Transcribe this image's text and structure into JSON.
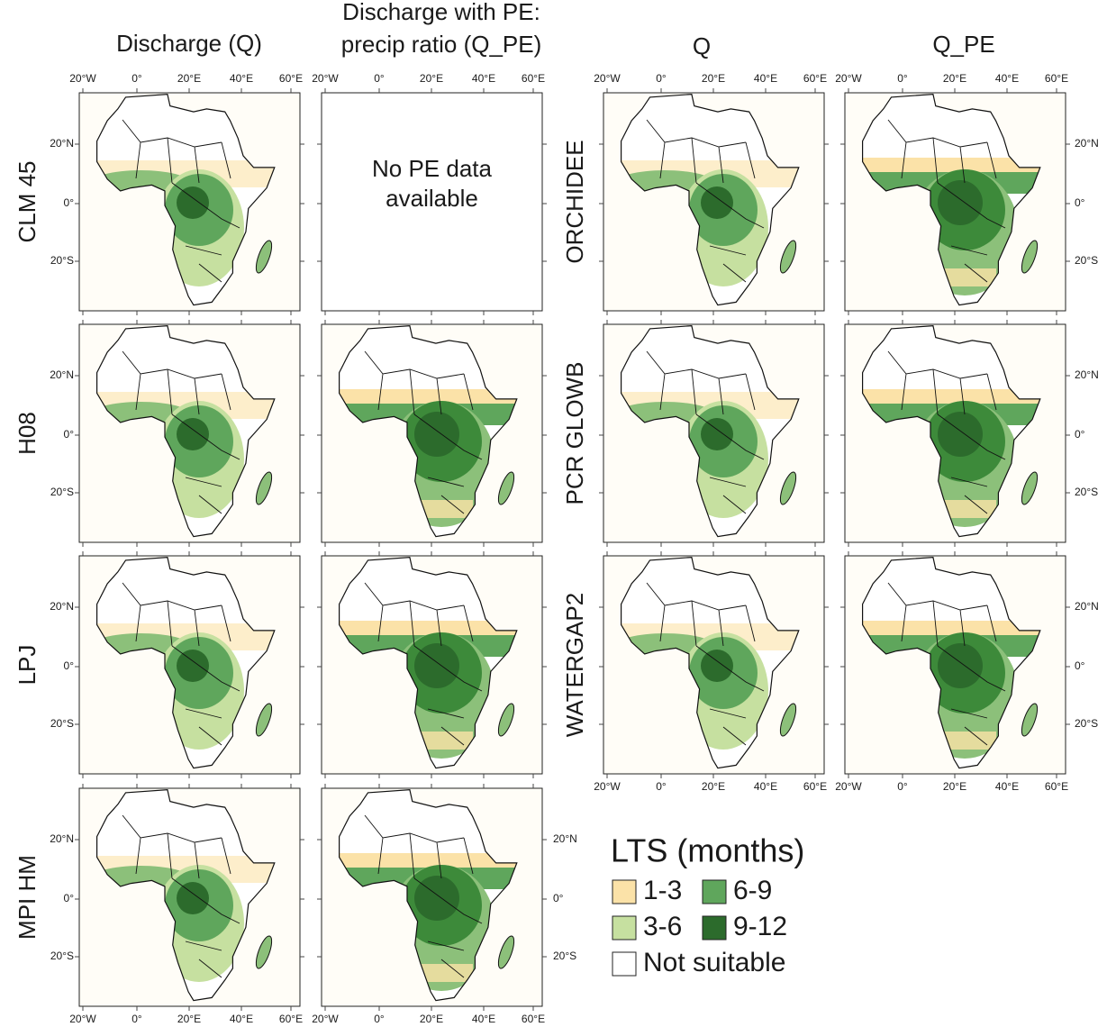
{
  "column_headers": [
    [
      "Discharge (Q)"
    ],
    [
      "Discharge with PE:",
      "precip ratio (Q_PE)"
    ],
    [
      "Q"
    ],
    [
      "Q_PE"
    ]
  ],
  "row_labels_left": [
    "CLM 45",
    "H08",
    "LPJ",
    "MPI HM"
  ],
  "row_labels_right": [
    "ORCHIDEE",
    "PCR GLOWB",
    "WATERGAP2"
  ],
  "x_tick_labels": [
    "20°W",
    "0°",
    "20°E",
    "40°E",
    "60°E"
  ],
  "y_tick_labels": [
    "20°N",
    "0°",
    "20°S"
  ],
  "no_data_note": [
    "No PE data",
    "available"
  ],
  "legend": {
    "title": "LTS (months)",
    "items": [
      {
        "label": "1-3",
        "color": "#fbe2a8"
      },
      {
        "label": "6-9",
        "color": "#5fa65c"
      },
      {
        "label": "3-6",
        "color": "#c6e0a0"
      },
      {
        "label": "9-12",
        "color": "#2c6b2c"
      },
      {
        "label": "Not suitable",
        "color": "#ffffff"
      }
    ]
  }
}
